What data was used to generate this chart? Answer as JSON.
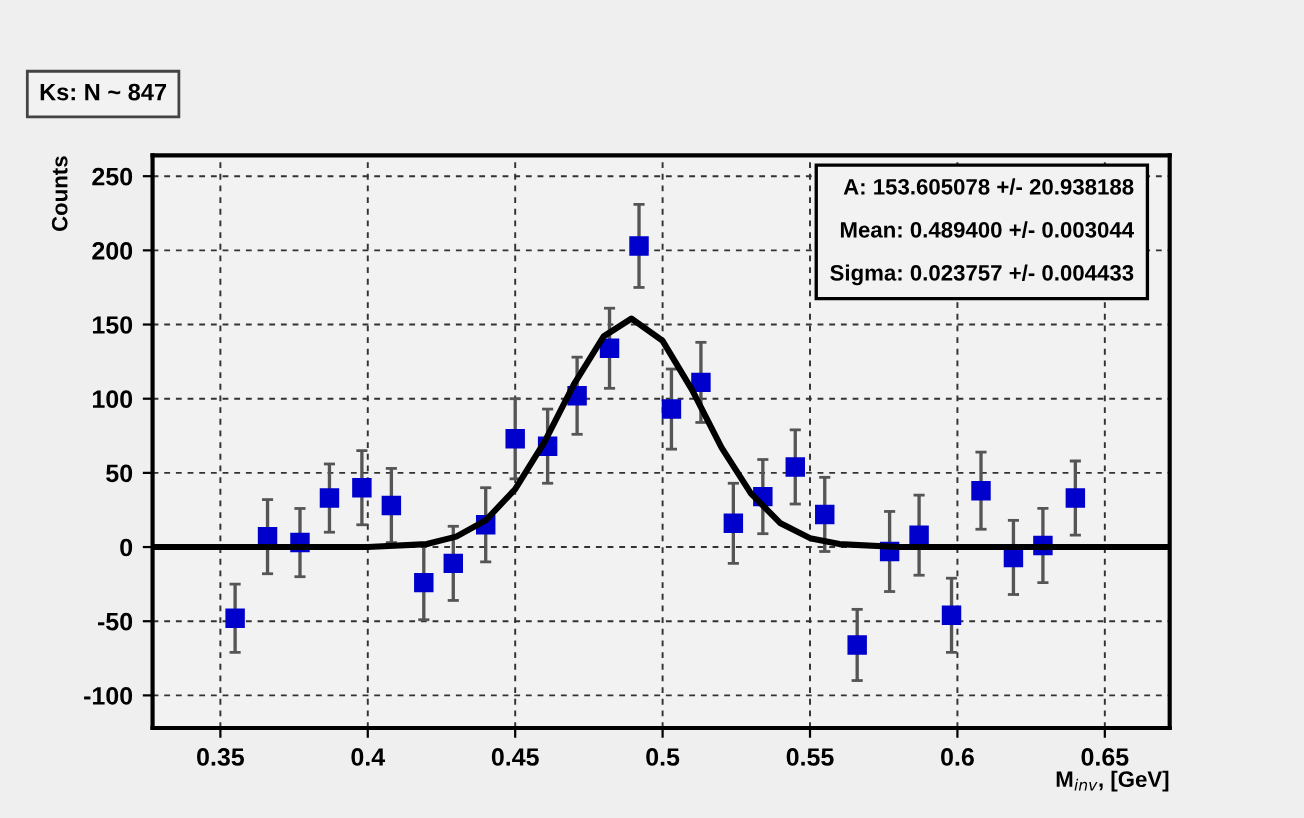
{
  "chart_data": {
    "type": "scatter",
    "title": "Ks: N ~ 847",
    "xlabel": "M$_{inv}$, [GeV]",
    "ylabel": "Counts",
    "xlim": [
      0.327,
      0.672
    ],
    "xticks": [
      {
        "value": 0.35,
        "label": "0.35"
      },
      {
        "value": 0.4,
        "label": "0.4"
      },
      {
        "value": 0.45,
        "label": "0.45"
      },
      {
        "value": 0.5,
        "label": "0.5"
      },
      {
        "value": 0.55,
        "label": "0.55"
      },
      {
        "value": 0.6,
        "label": "0.6"
      },
      {
        "value": 0.65,
        "label": "0.65"
      }
    ],
    "ylim": [
      -122,
      264
    ],
    "yticks": [
      -100,
      -50,
      0,
      50,
      100,
      150,
      200,
      250
    ],
    "grid": true,
    "series": [
      {
        "marker": "square",
        "color": "#0000cc",
        "x": [
          0.355,
          0.366,
          0.377,
          0.387,
          0.398,
          0.408,
          0.419,
          0.429,
          0.44,
          0.45,
          0.461,
          0.471,
          0.482,
          0.492,
          0.503,
          0.513,
          0.524,
          0.534,
          0.545,
          0.555,
          0.566,
          0.577,
          0.587,
          0.598,
          0.608,
          0.619,
          0.629,
          0.64
        ],
        "values": [
          -48,
          7,
          3,
          33,
          40,
          28,
          -24,
          -11,
          15,
          73,
          68,
          102,
          134,
          203,
          93,
          111,
          16,
          34,
          54,
          22,
          -66,
          -3,
          8,
          -46,
          38,
          -7,
          1,
          33
        ],
        "errors": [
          23,
          25,
          23,
          23,
          25,
          25,
          25,
          25,
          25,
          27,
          25,
          26,
          27,
          28,
          27,
          27,
          27,
          25,
          25,
          25,
          24,
          27,
          27,
          25,
          26,
          25,
          25,
          25
        ]
      },
      {
        "type": "line",
        "color": "#000000",
        "line_style": "solid",
        "x": [
          0.327,
          0.4,
          0.42,
          0.43,
          0.44,
          0.45,
          0.46,
          0.47,
          0.48,
          0.4894,
          0.5,
          0.51,
          0.52,
          0.53,
          0.54,
          0.55,
          0.56,
          0.58,
          0.672
        ],
        "values": [
          0,
          0,
          2,
          7,
          18,
          39,
          71,
          110,
          142,
          154,
          139,
          106,
          67,
          36,
          16,
          6,
          2,
          0,
          0
        ]
      }
    ],
    "annotations": [
      "A: 153.605078 +/- 20.938188",
      "Mean: 0.489400 +/- 0.003044",
      "Sigma: 0.023757 +/- 0.004433"
    ]
  }
}
